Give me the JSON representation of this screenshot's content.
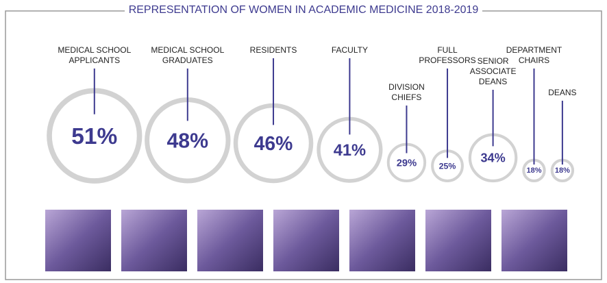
{
  "chart_data": {
    "type": "bubble",
    "title": "REPRESENTATION OF WOMEN IN ACADEMIC MEDICINE 2018-2019",
    "categories": [
      "MEDICAL SCHOOL\nAPPLICANTS",
      "MEDICAL SCHOOL\nGRADUATES",
      "RESIDENTS",
      "FACULTY",
      "DIVISION\nCHIEFS",
      "FULL\nPROFESSORS",
      "SENIOR\nASSOCIATE\nDEANS",
      "DEPARTMENT\nCHAIRS",
      "DEANS"
    ],
    "values": [
      51,
      48,
      46,
      41,
      29,
      25,
      34,
      18,
      18
    ],
    "value_labels": [
      "51%",
      "48%",
      "46%",
      "41%",
      "29%",
      "25%",
      "34%",
      "18%",
      "18%"
    ],
    "color": "#3d3a8f"
  }
}
